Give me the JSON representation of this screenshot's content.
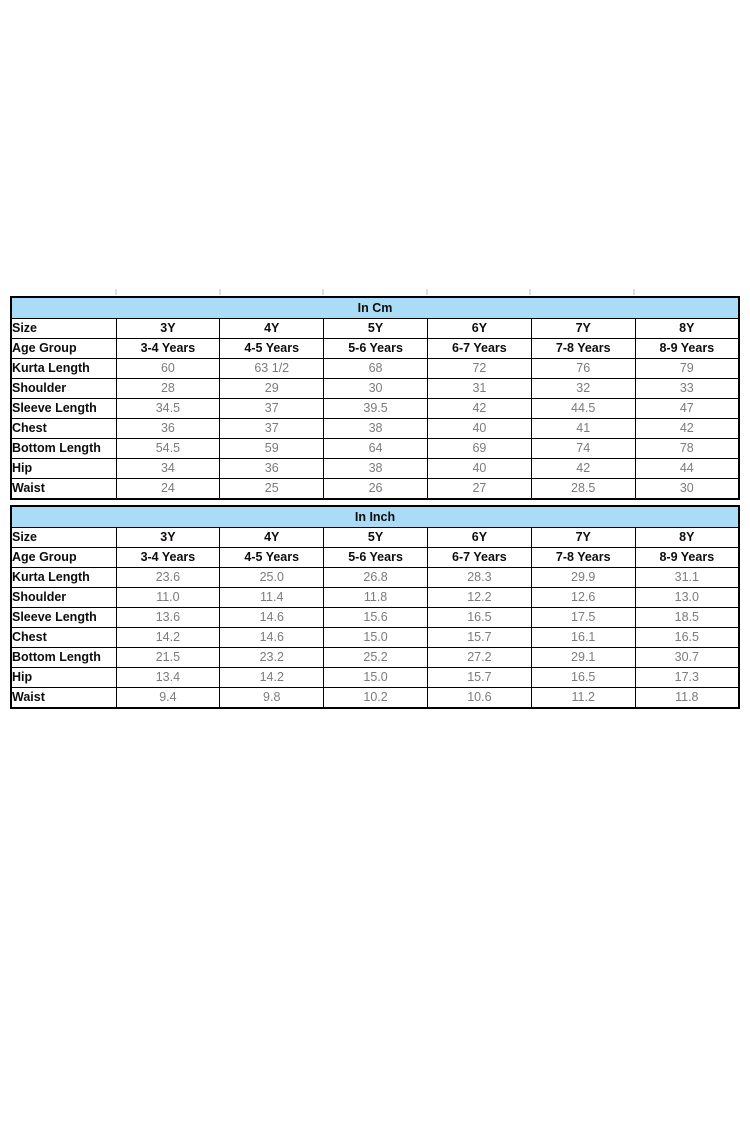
{
  "page": {
    "background": "#ffffff"
  },
  "colors": {
    "table_header_fill": "#ABDCF7",
    "table_border": "#000000",
    "label_text": "#0d0d0d",
    "value_text": "#7b7b7b",
    "gridline_tick": "#dedede"
  },
  "chart_data": [
    {
      "type": "table",
      "title": "In Cm",
      "rows": [
        {
          "label": "Size",
          "style": "header",
          "values": [
            "3Y",
            "4Y",
            "5Y",
            "6Y",
            "7Y",
            "8Y"
          ]
        },
        {
          "label": "Age Group",
          "style": "header",
          "values": [
            "3-4 Years",
            "4-5 Years",
            "5-6 Years",
            "6-7 Years",
            "7-8 Years",
            "8-9 Years"
          ]
        },
        {
          "label": "Kurta Length",
          "style": "data",
          "values": [
            "60",
            "63 1/2",
            "68",
            "72",
            "76",
            "79"
          ]
        },
        {
          "label": "Shoulder",
          "style": "data",
          "values": [
            "28",
            "29",
            "30",
            "31",
            "32",
            "33"
          ]
        },
        {
          "label": "Sleeve Length",
          "style": "data",
          "values": [
            "34.5",
            "37",
            "39.5",
            "42",
            "44.5",
            "47"
          ]
        },
        {
          "label": "Chest",
          "style": "data",
          "values": [
            "36",
            "37",
            "38",
            "40",
            "41",
            "42"
          ]
        },
        {
          "label": "Bottom Length",
          "style": "data",
          "values": [
            "54.5",
            "59",
            "64",
            "69",
            "74",
            "78"
          ]
        },
        {
          "label": "Hip",
          "style": "data",
          "values": [
            "34",
            "36",
            "38",
            "40",
            "42",
            "44"
          ]
        },
        {
          "label": "Waist",
          "style": "data",
          "values": [
            "24",
            "25",
            "26",
            "27",
            "28.5",
            "30"
          ]
        }
      ]
    },
    {
      "type": "table",
      "title": "In Inch",
      "rows": [
        {
          "label": "Size",
          "style": "header",
          "values": [
            "3Y",
            "4Y",
            "5Y",
            "6Y",
            "7Y",
            "8Y"
          ]
        },
        {
          "label": "Age Group",
          "style": "header",
          "values": [
            "3-4 Years",
            "4-5 Years",
            "5-6 Years",
            "6-7 Years",
            "7-8 Years",
            "8-9 Years"
          ]
        },
        {
          "label": "Kurta Length",
          "style": "data",
          "values": [
            "23.6",
            "25.0",
            "26.8",
            "28.3",
            "29.9",
            "31.1"
          ]
        },
        {
          "label": "Shoulder",
          "style": "data",
          "values": [
            "11.0",
            "11.4",
            "11.8",
            "12.2",
            "12.6",
            "13.0"
          ]
        },
        {
          "label": "Sleeve Length",
          "style": "data",
          "values": [
            "13.6",
            "14.6",
            "15.6",
            "16.5",
            "17.5",
            "18.5"
          ]
        },
        {
          "label": "Chest",
          "style": "data",
          "values": [
            "14.2",
            "14.6",
            "15.0",
            "15.7",
            "16.1",
            "16.5"
          ]
        },
        {
          "label": "Bottom Length",
          "style": "data",
          "values": [
            "21.5",
            "23.2",
            "25.2",
            "27.2",
            "29.1",
            "30.7"
          ]
        },
        {
          "label": "Hip",
          "style": "data",
          "values": [
            "13.4",
            "14.2",
            "15.0",
            "15.7",
            "16.5",
            "17.3"
          ]
        },
        {
          "label": "Waist",
          "style": "data",
          "values": [
            "9.4",
            "9.8",
            "10.2",
            "10.6",
            "11.2",
            "11.8"
          ]
        }
      ]
    }
  ]
}
